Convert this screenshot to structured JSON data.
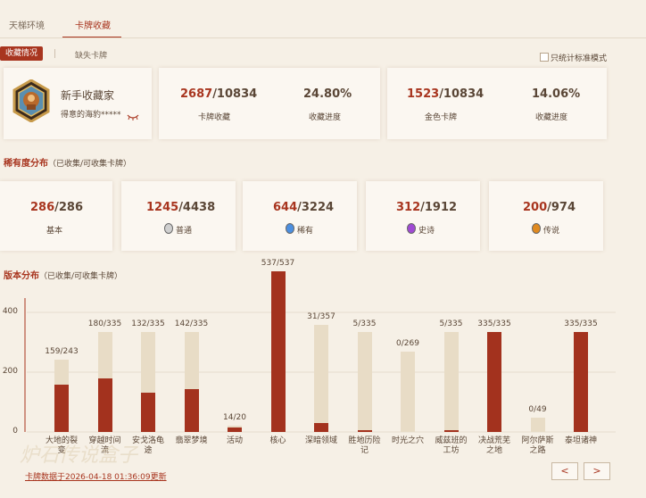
{
  "tabs": [
    {
      "label": "天梯环境"
    },
    {
      "label": "卡牌收藏"
    }
  ],
  "subtabs": {
    "active": "收藏情况",
    "other": "缺失卡牌"
  },
  "standard_only_label": "只统计标准模式",
  "profile": {
    "title": "新手收藏家",
    "username": "得意的海豹*****"
  },
  "summary": {
    "cards_num": "2687",
    "cards_total": "/10834",
    "cards_label": "卡牌收藏",
    "progress": "24.80%",
    "progress_label": "收藏进度",
    "golden_num": "1523",
    "golden_total": "/10834",
    "golden_label": "金色卡牌",
    "golden_progress": "14.06%",
    "golden_progress_label": "收藏进度"
  },
  "rarity_title": "稀有度分布",
  "rarity_subtitle": "（已收集/可收集卡牌）",
  "rarity": [
    {
      "num": "286",
      "total": "/286",
      "label": "基本",
      "gem": ""
    },
    {
      "num": "1245",
      "total": "/4438",
      "label": "普通",
      "gem": "#cfcfcf"
    },
    {
      "num": "644",
      "total": "/3224",
      "label": "稀有",
      "gem": "#4c8fe0"
    },
    {
      "num": "312",
      "total": "/1912",
      "label": "史诗",
      "gem": "#a04ad4"
    },
    {
      "num": "200",
      "total": "/974",
      "label": "传说",
      "gem": "#e08a20"
    }
  ],
  "sets_title": "版本分布",
  "sets_subtitle": "（已收集/可收集卡牌）",
  "colors": {
    "accent": "#a8351f",
    "bar_collected": "#a3321e",
    "bar_total": "#e8dcc6"
  },
  "chart_data": {
    "type": "bar",
    "ylim": [
      0,
      537
    ],
    "yticks": [
      0,
      200,
      400
    ],
    "categories": [
      "大地的裂变",
      "穿越时间流",
      "安戈洛龟途",
      "翡翠梦境",
      "活动",
      "核心",
      "深暗领域",
      "胜地历险记",
      "时光之穴",
      "威兹班的工坊",
      "决战荒芜之地",
      "阿尔萨斯之路",
      "泰坦诸神"
    ],
    "series": [
      {
        "values": [
          159,
          180,
          132,
          142,
          14,
          537,
          31,
          5,
          0,
          5,
          335,
          0,
          335
        ]
      },
      {
        "values": [
          243,
          335,
          335,
          335,
          20,
          537,
          357,
          335,
          269,
          335,
          335,
          49,
          335
        ]
      }
    ],
    "value_labels": [
      "159/243",
      "180/335",
      "132/335",
      "142/335",
      "14/20",
      "537/537",
      "31/357",
      "5/335",
      "0/269",
      "5/335",
      "335/335",
      "0/49",
      "335/335"
    ]
  },
  "x_labels": [
    [
      "大地的裂",
      "变"
    ],
    [
      "穿越时间",
      "流"
    ],
    [
      "安戈洛龟",
      "途"
    ],
    [
      "翡翠梦境",
      ""
    ],
    [
      "活动",
      ""
    ],
    [
      "核心",
      ""
    ],
    [
      "深暗领域",
      ""
    ],
    [
      "胜地历险",
      "记"
    ],
    [
      "时光之穴",
      ""
    ],
    [
      "威兹班的",
      "工坊"
    ],
    [
      "决战荒芜",
      "之地"
    ],
    [
      "阿尔萨斯",
      "之路"
    ],
    [
      "泰坦诸神",
      ""
    ]
  ],
  "updated_text": "卡牌数据于2026-04-18 01:36:09更新",
  "nav": {
    "prev": "<",
    "next": ">"
  }
}
